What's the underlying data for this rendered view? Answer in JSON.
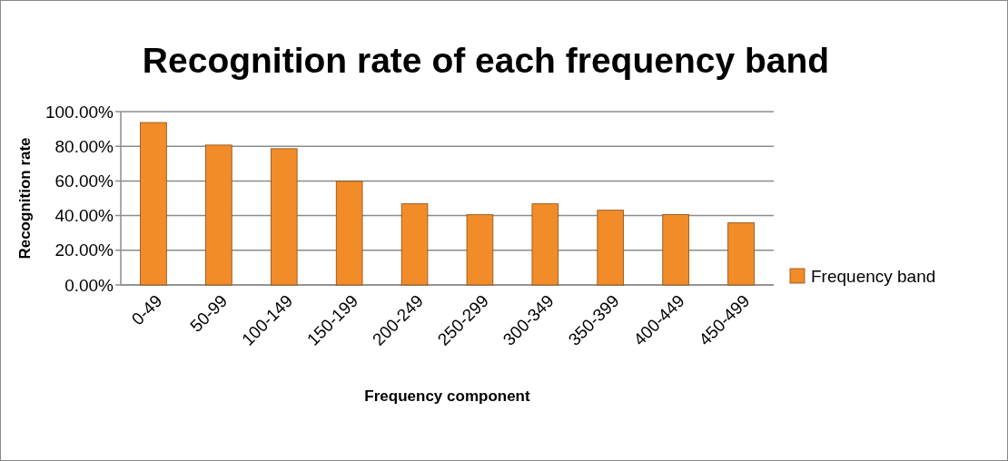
{
  "chart_data": {
    "type": "bar",
    "title": "Recognition rate of each frequency band",
    "xlabel": "Frequency component",
    "ylabel": "Recognition rate",
    "categories": [
      "0-49",
      "50-99",
      "100-149",
      "150-199",
      "200-249",
      "250-299",
      "300-349",
      "350-399",
      "400-449",
      "450-499"
    ],
    "series": [
      {
        "name": "Frequency band",
        "color": "#f28c28",
        "values": [
          0.937,
          0.807,
          0.786,
          0.598,
          0.468,
          0.405,
          0.468,
          0.431,
          0.406,
          0.359
        ]
      }
    ],
    "ylim": [
      0,
      1
    ],
    "yticks": [
      {
        "value": 0,
        "label": "0.00%"
      },
      {
        "value": 0.2,
        "label": "20.00%"
      },
      {
        "value": 0.4,
        "label": "40.00%"
      },
      {
        "value": 0.6,
        "label": "60.00%"
      },
      {
        "value": 0.8,
        "label": "80.00%"
      },
      {
        "value": 1,
        "label": "100.00%"
      }
    ],
    "grid": "y",
    "legend": "right"
  }
}
